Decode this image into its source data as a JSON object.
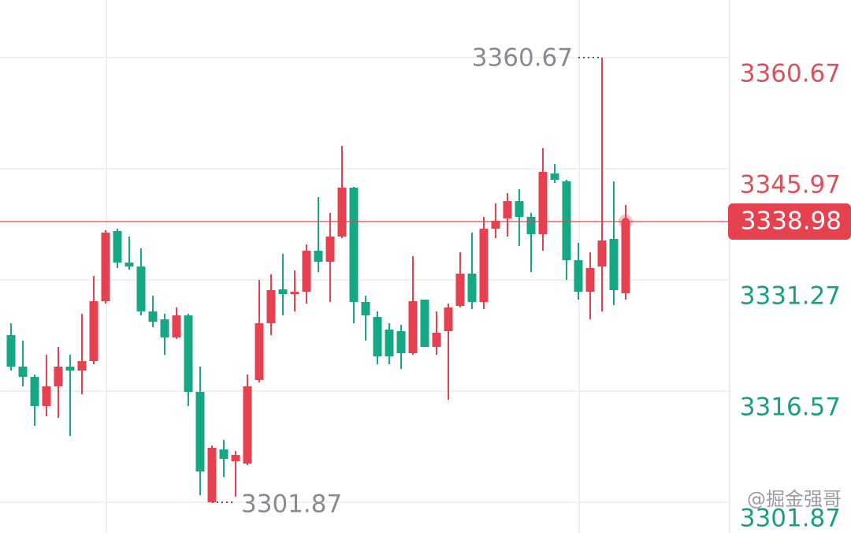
{
  "chart_data": {
    "type": "candlestick",
    "ylim": [
      3297.8,
      3368.28
    ],
    "yticks": [
      3360.67,
      3345.97,
      3331.27,
      3316.57,
      3301.87
    ],
    "grid": true,
    "up_color": "#e5414f",
    "down_color": "#16a785",
    "open": [
      3323.97,
      3319.8,
      3318.44,
      3314.59,
      3317.19,
      3319.8,
      3319.28,
      3320.53,
      3328.45,
      3337.73,
      3333.56,
      3333.04,
      3327.1,
      3326.05,
      3323.66,
      3326.58,
      3316.46,
      3301.87,
      3308.85,
      3307.29,
      3306.98,
      3318.03,
      3325.53,
      3330.02,
      3329.39,
      3329.7,
      3335.13,
      3333.67,
      3337.0,
      3343.47,
      3328.35,
      3326.37,
      3324.7,
      3324.49,
      3321.57,
      3328.66,
      3322.41,
      3324.49,
      3327.83,
      3332.1,
      3328.35,
      3338.04,
      3339.4,
      3341.69,
      3339.61,
      3337.31,
      3345.34,
      3344.3,
      3333.87,
      3329.7,
      3333.04,
      3336.69,
      3329.5
    ],
    "high": [
      3325.53,
      3323.24,
      3318.76,
      3321.36,
      3322.41,
      3321.36,
      3326.79,
      3331.79,
      3337.84,
      3338.04,
      3337.0,
      3335.44,
      3329.18,
      3326.79,
      3327.62,
      3326.79,
      3319.8,
      3309.37,
      3310.1,
      3308.64,
      3318.76,
      3331.27,
      3332.0,
      3334.71,
      3332.52,
      3335.96,
      3342.21,
      3340.13,
      3348.99,
      3343.57,
      3329.18,
      3327.1,
      3325.53,
      3325.32,
      3334.4,
      3328.66,
      3327.1,
      3328.14,
      3334.92,
      3337.52,
      3339.61,
      3341.38,
      3342.74,
      3343.26,
      3340.13,
      3348.68,
      3346.59,
      3344.51,
      3336.17,
      3334.92,
      3360.67,
      3344.3,
      3341.17
    ],
    "low": [
      3319.28,
      3317.19,
      3311.98,
      3313.23,
      3313.02,
      3310.62,
      3316.15,
      3320.11,
      3328.14,
      3332.83,
      3332.62,
      3326.58,
      3325.01,
      3321.36,
      3323.45,
      3314.59,
      3302.8,
      3301.87,
      3305.2,
      3302.6,
      3306.77,
      3317.71,
      3323.97,
      3326.58,
      3327.1,
      3328.14,
      3332.31,
      3328.35,
      3336.79,
      3325.53,
      3323.24,
      3320.11,
      3320.11,
      3319.49,
      3321.36,
      3322.41,
      3321.36,
      3315.42,
      3327.62,
      3327.41,
      3327.41,
      3336.79,
      3337.0,
      3335.75,
      3332.31,
      3335.13,
      3344.09,
      3331.27,
      3328.66,
      3326.05,
      3327.1,
      3327.93,
      3328.66
    ],
    "close": [
      3319.8,
      3318.44,
      3314.59,
      3317.19,
      3319.8,
      3319.28,
      3320.53,
      3328.45,
      3337.52,
      3333.56,
      3333.04,
      3327.1,
      3325.74,
      3323.66,
      3326.58,
      3316.46,
      3305.93,
      3309.06,
      3307.6,
      3308.12,
      3317.19,
      3325.53,
      3329.91,
      3329.39,
      3329.7,
      3335.13,
      3333.67,
      3337.0,
      3343.47,
      3328.35,
      3326.58,
      3321.15,
      3321.15,
      3321.57,
      3328.45,
      3322.41,
      3324.28,
      3327.62,
      3332.1,
      3328.35,
      3338.04,
      3339.09,
      3341.69,
      3339.61,
      3337.31,
      3345.55,
      3344.51,
      3333.87,
      3329.7,
      3332.83,
      3336.48,
      3329.91,
      3338.98
    ],
    "watermark": "@掘金强哥"
  }
}
